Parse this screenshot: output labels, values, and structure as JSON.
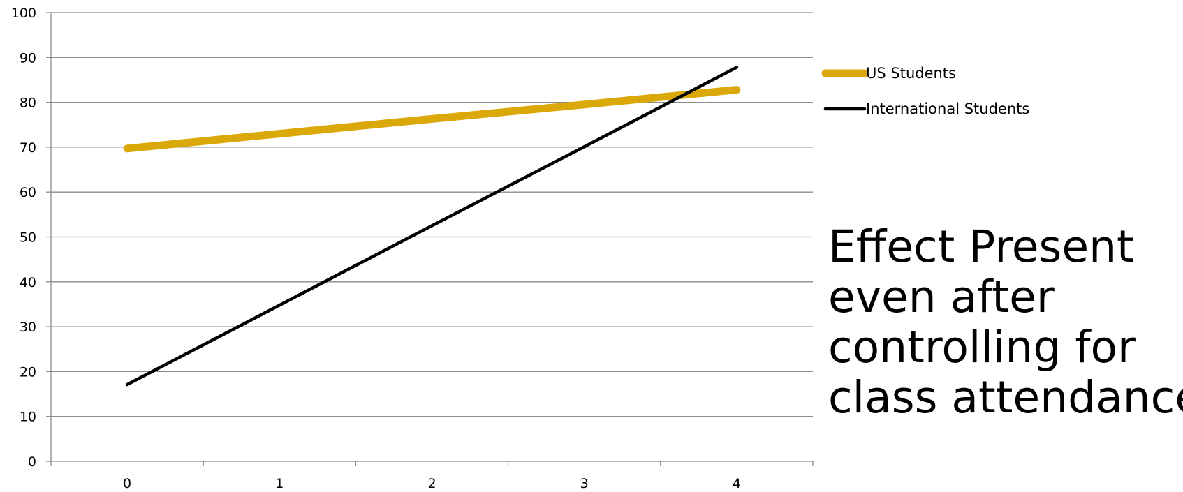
{
  "chart_data": {
    "type": "line",
    "x": [
      0,
      1,
      2,
      3,
      4
    ],
    "xticks": [
      "0",
      "1",
      "2",
      "3",
      "4"
    ],
    "ylim": [
      0,
      100
    ],
    "yticks": [
      0,
      10,
      20,
      30,
      40,
      50,
      60,
      70,
      80,
      90,
      100
    ],
    "grid": true,
    "legend_position": "right",
    "series": [
      {
        "name": "US Students",
        "color": "#DAA808",
        "values": [
          69.7,
          73,
          76.3,
          79.5,
          82.8
        ]
      },
      {
        "name": "International Students",
        "color": "#000000",
        "values": [
          17.1,
          34.8,
          52.5,
          70.1,
          87.8
        ]
      }
    ],
    "annotation_lines": [
      "Effect Present",
      "even after",
      "controlling for",
      "class attendance"
    ]
  }
}
